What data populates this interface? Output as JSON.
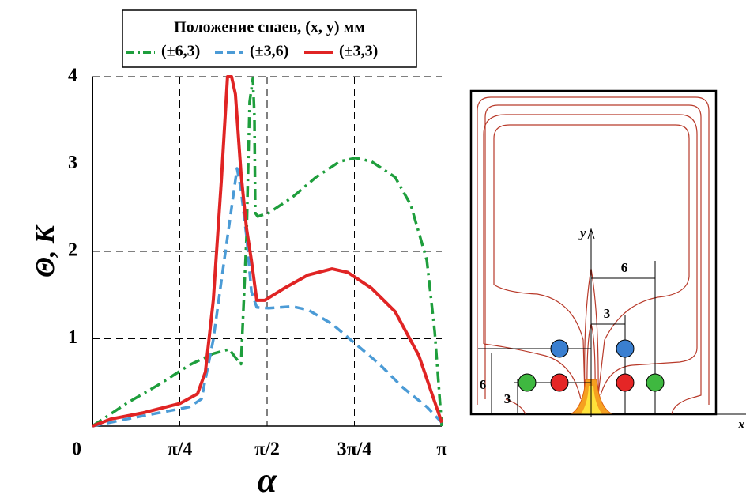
{
  "chart_data": {
    "type": "line",
    "legend_title": "Положение спаев, (x, y) мм",
    "y_label": "Θ, К",
    "x_label": "α",
    "xlim": [
      0,
      3.14159
    ],
    "ylim": [
      0,
      4
    ],
    "xticks": [
      0,
      {
        "value": 0.785398,
        "label": "π/4"
      },
      {
        "value": 1.570796,
        "label": "π/2"
      },
      {
        "value": 2.356194,
        "label": "3π/4"
      },
      {
        "value": 3.14159,
        "label": "π"
      }
    ],
    "yticks": [
      1,
      2,
      3,
      4
    ],
    "grid": true,
    "legend": "top",
    "series": [
      {
        "name": "(±6,3)",
        "color": "#1e9e3c",
        "style": "dashdot",
        "x": [
          0,
          0.306,
          0.59,
          0.874,
          1.087,
          1.23,
          1.301,
          1.336,
          1.386,
          1.414,
          1.443,
          1.457,
          1.464,
          1.486,
          1.585,
          1.798,
          2.011,
          2.225,
          2.367,
          2.509,
          2.722,
          2.864,
          3.007,
          3.078,
          3.1416
        ],
        "values": [
          0,
          0.26,
          0.47,
          0.7,
          0.83,
          0.88,
          0.76,
          0.71,
          2.17,
          3.71,
          3.98,
          3.54,
          2.44,
          2.4,
          2.44,
          2.62,
          2.85,
          3.03,
          3.07,
          3.03,
          2.85,
          2.53,
          1.9,
          1.08,
          0
        ]
      },
      {
        "name": "(±3,6)",
        "color": "#4b9bd6",
        "style": "dashed",
        "x": [
          0,
          0.306,
          0.59,
          0.874,
          0.981,
          1.087,
          1.194,
          1.301,
          1.336,
          1.386,
          1.429,
          1.478,
          1.585,
          1.798,
          1.94,
          2.154,
          2.367,
          2.58,
          2.793,
          3.007,
          3.142
        ],
        "values": [
          0,
          0.08,
          0.15,
          0.22,
          0.31,
          0.99,
          1.98,
          2.95,
          2.7,
          2.17,
          1.54,
          1.36,
          1.35,
          1.37,
          1.33,
          1.17,
          0.94,
          0.71,
          0.44,
          0.22,
          0.04
        ]
      },
      {
        "name": "(±3,3)",
        "color": "#e02424",
        "style": "solid",
        "x": [
          0,
          0.163,
          0.448,
          0.789,
          0.945,
          1.016,
          1.087,
          1.159,
          1.215,
          1.251,
          1.286,
          1.336,
          1.386,
          1.429,
          1.478,
          1.549,
          1.727,
          1.94,
          2.154,
          2.296,
          2.509,
          2.722,
          2.935,
          3.142
        ],
        "values": [
          0,
          0.08,
          0.15,
          0.26,
          0.37,
          0.62,
          1.44,
          2.81,
          4.0,
          4.0,
          3.8,
          2.89,
          2.26,
          1.9,
          1.44,
          1.44,
          1.58,
          1.73,
          1.8,
          1.76,
          1.58,
          1.31,
          0.81,
          0.04
        ]
      }
    ]
  },
  "diagram": {
    "y_axis": "y",
    "x_axis": "x",
    "dim_top": "6",
    "dim_mid": "3",
    "dim_left_outer": "6",
    "dim_left_inner": "3"
  }
}
